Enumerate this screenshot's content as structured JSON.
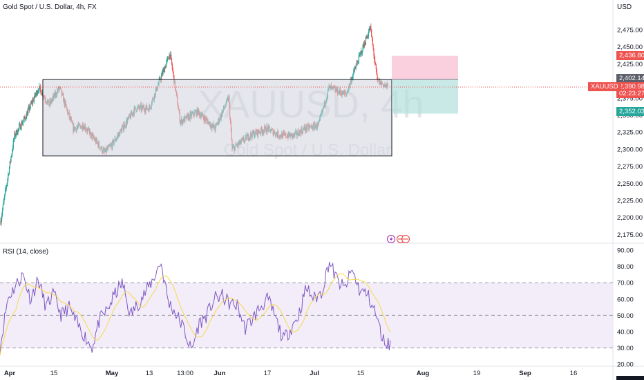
{
  "header": {
    "title": "Gold Spot / U.S. Dollar, 4h, FX",
    "currency": "USD"
  },
  "watermark": {
    "symbol": "XAUUSD, 4h",
    "name": "Gold Spot / U.S. Dollar"
  },
  "price_axis": {
    "ticks": [
      "2,475.00",
      "2,450.00",
      "2,425.00",
      "2,400.00",
      "2,375.00",
      "2,350.00",
      "2,325.00",
      "2,300.00",
      "2,275.00",
      "2,250.00",
      "2,225.00",
      "2,200.00",
      "2,175.00"
    ]
  },
  "price_labels": {
    "stop_loss": "2,436.80",
    "entry": "2,402.14",
    "last_price": "2,390.98",
    "countdown": "02:23:27",
    "take_profit": "2,352.03",
    "symbol_tag": "XAUUSD"
  },
  "rsi": {
    "title": "RSI (14, close)",
    "ticks": [
      "90.00",
      "80.00",
      "70.00",
      "60.00",
      "50.00",
      "40.00",
      "30.00",
      "20.00"
    ]
  },
  "time_axis": {
    "labels": [
      "Apr",
      "15",
      "May",
      "13",
      "13:00",
      "Jun",
      "17",
      "Jul",
      "15",
      "Aug",
      "19",
      "Sep",
      "16"
    ]
  },
  "colors": {
    "up": "#26a69a",
    "down": "#ef5350",
    "rsi_line": "#7e57c2",
    "rsi_ma": "#f9d84a",
    "rsi_band": "#ede7f6",
    "box_fill": "#d1d4dc"
  },
  "chart_data": [
    {
      "type": "candlestick",
      "title": "Gold Spot / U.S. Dollar, 4h, FX",
      "symbol": "XAUUSD",
      "xlabel": "",
      "ylabel": "",
      "ylim": [
        2160,
        2495
      ],
      "anchors": [
        {
          "x": "Apr 1",
          "close": 2195
        },
        {
          "x": "Apr 5",
          "close": 2320
        },
        {
          "x": "Apr 8",
          "close": 2345
        },
        {
          "x": "Apr 12",
          "close": 2390
        },
        {
          "x": "Apr 15",
          "close": 2365
        },
        {
          "x": "Apr 18",
          "close": 2390
        },
        {
          "x": "Apr 22",
          "close": 2330
        },
        {
          "x": "Apr 25",
          "close": 2335
        },
        {
          "x": "May 1",
          "close": 2295
        },
        {
          "x": "May 3",
          "close": 2305
        },
        {
          "x": "May 10",
          "close": 2360
        },
        {
          "x": "May 14",
          "close": 2360
        },
        {
          "x": "May 20",
          "close": 2440
        },
        {
          "x": "May 23",
          "close": 2340
        },
        {
          "x": "May 28",
          "close": 2355
        },
        {
          "x": "Jun 2",
          "close": 2330
        },
        {
          "x": "Jun 6",
          "close": 2375
        },
        {
          "x": "Jun 7",
          "close": 2300
        },
        {
          "x": "Jun 12",
          "close": 2320
        },
        {
          "x": "Jun 17",
          "close": 2330
        },
        {
          "x": "Jun 21",
          "close": 2320
        },
        {
          "x": "Jun 25",
          "close": 2320
        },
        {
          "x": "Jun 28",
          "close": 2330
        },
        {
          "x": "Jul 2",
          "close": 2335
        },
        {
          "x": "Jul 5",
          "close": 2390
        },
        {
          "x": "Jul 10",
          "close": 2380
        },
        {
          "x": "Jul 12",
          "close": 2410
        },
        {
          "x": "Jul 16",
          "close": 2465
        },
        {
          "x": "Jul 17",
          "close": 2478
        },
        {
          "x": "Jul 19",
          "close": 2400
        },
        {
          "x": "Jul 22",
          "close": 2391
        }
      ],
      "annotations": [
        {
          "type": "rectangle",
          "from": "Apr 8",
          "to": "Jul 22",
          "y_top": 2402,
          "y_bottom": 2290
        },
        {
          "type": "short_position",
          "entry": 2402.14,
          "stop": 2436.8,
          "target": 2352.03,
          "from": "Jul 22",
          "to": "Aug 5"
        }
      ]
    },
    {
      "type": "line",
      "title": "RSI (14, close)",
      "ylim": [
        20,
        90
      ],
      "levels": [
        70,
        50,
        30
      ],
      "series": [
        {
          "values": [
            30,
            60,
            68,
            75,
            60,
            72,
            55,
            63,
            50,
            55,
            45,
            38,
            30,
            47,
            53,
            63,
            70,
            50,
            57,
            64,
            72,
            83,
            58,
            51,
            42,
            28,
            45,
            50,
            60,
            62,
            57,
            56,
            42,
            48,
            55,
            60,
            48,
            35,
            42,
            50,
            67,
            60,
            64,
            83,
            72,
            66,
            78,
            65,
            63,
            52,
            35,
            32
          ]
        }
      ]
    }
  ]
}
